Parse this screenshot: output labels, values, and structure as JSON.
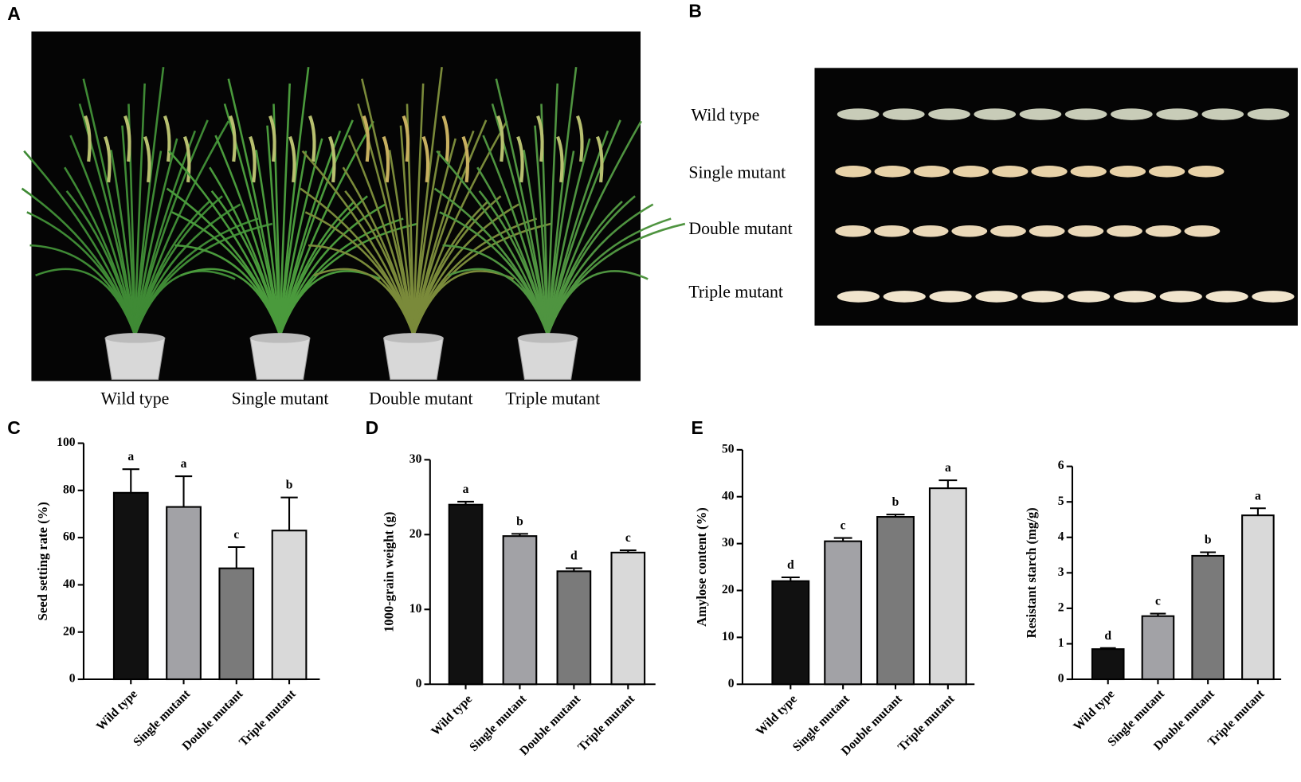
{
  "panel_labels": [
    "A",
    "B",
    "C",
    "D",
    "E"
  ],
  "photo_a": {
    "labels": [
      "Wild type",
      "Single mutant",
      "Double mutant",
      "Triple mutant"
    ]
  },
  "photo_b": {
    "labels": [
      "Wild type",
      "Single mutant",
      "Double mutant",
      "Triple mutant"
    ]
  },
  "chart_data": [
    {
      "type": "bar",
      "ylabel": "Seed setting rate (%)",
      "categories": [
        "Wild type",
        "Single mutant",
        "Double mutant",
        "Triple mutant"
      ],
      "values": [
        79,
        73,
        47,
        63
      ],
      "errors": [
        10,
        13,
        9,
        14
      ],
      "annotations": [
        "a",
        "a",
        "c",
        "b"
      ],
      "colors": [
        "#111111",
        "#a2a2a6",
        "#7a7a7a",
        "#d9d9d9"
      ],
      "ylim": [
        0,
        100
      ],
      "yticks": [
        0,
        20,
        40,
        60,
        80,
        100
      ]
    },
    {
      "type": "bar",
      "ylabel": "1000-grain weight (g)",
      "categories": [
        "Wild type",
        "Single mutant",
        "Double mutant",
        "Triple mutant"
      ],
      "values": [
        24,
        19.8,
        15.1,
        17.6
      ],
      "errors": [
        0.4,
        0.3,
        0.4,
        0.3
      ],
      "annotations": [
        "a",
        "b",
        "d",
        "c"
      ],
      "colors": [
        "#111111",
        "#a2a2a6",
        "#7a7a7a",
        "#d9d9d9"
      ],
      "ylim": [
        0,
        30
      ],
      "yticks": [
        0,
        10,
        20,
        30
      ]
    },
    {
      "type": "bar",
      "ylabel": "Amylose content (%)",
      "categories": [
        "Wild type",
        "Single mutant",
        "Double mutant",
        "Triple mutant"
      ],
      "values": [
        22,
        30.5,
        35.7,
        41.8
      ],
      "errors": [
        0.8,
        0.7,
        0.5,
        1.7
      ],
      "annotations": [
        "d",
        "c",
        "b",
        "a"
      ],
      "colors": [
        "#111111",
        "#a2a2a6",
        "#7a7a7a",
        "#d9d9d9"
      ],
      "ylim": [
        0,
        50
      ],
      "yticks": [
        0,
        10,
        20,
        30,
        40,
        50
      ]
    },
    {
      "type": "bar",
      "ylabel": "Resistant starch (mg/g)",
      "categories": [
        "Wild type",
        "Single mutant",
        "Double mutant",
        "Triple mutant"
      ],
      "values": [
        0.85,
        1.78,
        3.48,
        4.62
      ],
      "errors": [
        0.03,
        0.07,
        0.1,
        0.2
      ],
      "annotations": [
        "d",
        "c",
        "b",
        "a"
      ],
      "colors": [
        "#111111",
        "#a2a2a6",
        "#7a7a7a",
        "#d9d9d9"
      ],
      "ylim": [
        0,
        6
      ],
      "yticks": [
        0,
        1,
        2,
        3,
        4,
        5,
        6
      ]
    }
  ]
}
